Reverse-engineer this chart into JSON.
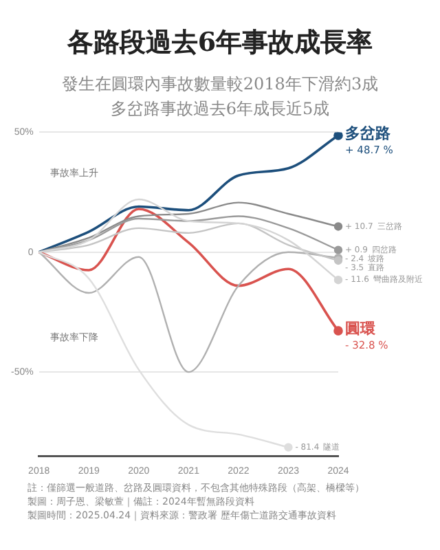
{
  "chart_data": {
    "type": "line",
    "title": "各路段過去6年事故成長率",
    "subtitle": "發生在圓環內事故數量較2018年下滑約3成多岔路事故過去6年成長近5成",
    "categories": [
      "2018",
      "2019",
      "2020",
      "2021",
      "2022",
      "2023",
      "2024"
    ],
    "series": [
      {
        "name": "多岔路",
        "color": "#1d4f7c",
        "values": [
          0,
          8.5,
          19,
          17.5,
          32,
          35,
          48.7
        ],
        "value_labels": [
          null,
          null,
          null,
          null,
          null,
          null,
          "+ 48.7 %"
        ]
      },
      {
        "name": "圓環",
        "color": "#d9534f",
        "values": [
          0,
          -7.5,
          18,
          4,
          -14,
          -7,
          -32.8
        ],
        "value_labels": [
          null,
          null,
          null,
          null,
          null,
          null,
          "- 32.8 %"
        ]
      },
      {
        "name": "三岔路",
        "color": "#8a8a8a",
        "values": [
          0,
          6,
          15,
          16,
          20.7,
          16,
          10.7
        ],
        "value_labels": [
          null,
          null,
          null,
          null,
          null,
          null,
          "+ 10.7"
        ]
      },
      {
        "name": "四岔路",
        "color": "#9a9a9a",
        "values": [
          0,
          5,
          14,
          13,
          15,
          10,
          0.9
        ],
        "value_labels": [
          null,
          null,
          null,
          null,
          null,
          null,
          "+ 0.9"
        ]
      },
      {
        "name": "坡路",
        "color": "#b0b0b0",
        "values": [
          0,
          -17,
          -2,
          -50,
          -14,
          0,
          -2.4
        ],
        "value_labels": [
          null,
          null,
          null,
          null,
          null,
          null,
          "- 2.4"
        ]
      },
      {
        "name": "直路",
        "color": "#c4c4c4",
        "values": [
          0,
          3,
          10,
          8,
          12,
          3,
          -3.5
        ],
        "value_labels": [
          null,
          null,
          null,
          null,
          null,
          null,
          "- 3.5"
        ]
      },
      {
        "name": "彎曲路及附近",
        "color": "#d4d4d4",
        "values": [
          0,
          5,
          22,
          13,
          12,
          5,
          -11.6
        ],
        "value_labels": [
          null,
          null,
          null,
          null,
          null,
          null,
          "- 11.6"
        ]
      },
      {
        "name": "隧道",
        "color": "#dedede",
        "values": [
          0,
          -11,
          -49,
          -72,
          -76,
          -81.4,
          null
        ],
        "value_labels": [
          null,
          null,
          null,
          null,
          null,
          "- 81.4",
          null
        ]
      }
    ],
    "ylim": [
      -85,
      50
    ],
    "yticks": [
      {
        "value": 50,
        "label": "50%"
      },
      0,
      {
        "value": -50,
        "label": "-50%"
      }
    ],
    "grid": "y",
    "legend": false,
    "line_style": "solid",
    "annotations": [
      "事故率上升",
      "事故率下降",
      "註：僅篩選一般道路、岔路及圓環資料，不包含其他特殊路段（高架、橋樑等）",
      "製圖：周子恩、梁敏萱｜備註：2024年暫無路段資料",
      "製圖時間：2025.04.24｜資料來源：警政署 歷年傷亡道路交通事故資料"
    ]
  }
}
